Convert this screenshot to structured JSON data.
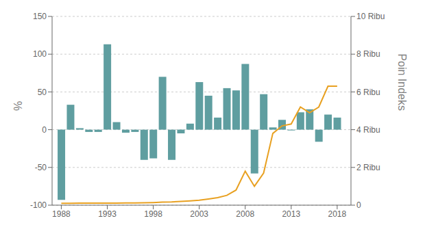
{
  "chart_data": {
    "type": "bar",
    "x": [
      1988,
      1989,
      1990,
      1991,
      1992,
      1993,
      1994,
      1995,
      1996,
      1997,
      1998,
      1999,
      2000,
      2001,
      2002,
      2003,
      2004,
      2005,
      2006,
      2007,
      2008,
      2009,
      2010,
      2011,
      2012,
      2013,
      2014,
      2015,
      2016,
      2017,
      2018
    ],
    "series": [
      {
        "type": "bar",
        "color": "#5f9ea0",
        "values": [
          -93,
          33,
          2,
          -3,
          -3,
          113,
          10,
          -4,
          -3,
          -40,
          -38,
          70,
          -40,
          -5,
          8,
          63,
          45,
          16,
          55,
          52,
          87,
          -58,
          47,
          3,
          13,
          -1,
          23,
          27,
          -16,
          20,
          16
        ]
      },
      {
        "type": "line",
        "axis": "y2",
        "color": "#e8a020",
        "values": [
          100,
          100,
          105,
          107,
          105,
          105,
          110,
          115,
          120,
          130,
          140,
          160,
          170,
          200,
          230,
          260,
          330,
          400,
          520,
          800,
          1800,
          1000,
          1700,
          3800,
          4200,
          4300,
          5200,
          4900,
          5200,
          6300,
          6300
        ]
      }
    ],
    "xlim": [
      1987.0,
      2019.5
    ],
    "xticks": [
      1988,
      1993,
      1998,
      2003,
      2008,
      2013,
      2018
    ],
    "ylim": [
      -100,
      150
    ],
    "yticks": [
      -100,
      -50,
      0,
      50,
      100,
      150
    ],
    "ylabel": "%",
    "y2lim": [
      0,
      10000
    ],
    "y2ticks": [
      0,
      {
        "value": 2000,
        "label": "2 Ribu"
      },
      {
        "value": 4000,
        "label": "4 Ribu"
      },
      {
        "value": 6000,
        "label": "6 Ribu"
      },
      {
        "value": 8000,
        "label": "8 Ribu"
      },
      {
        "value": 10000,
        "label": "10 Ribu"
      }
    ],
    "y2label": "Poin Indeks",
    "grid": true
  }
}
